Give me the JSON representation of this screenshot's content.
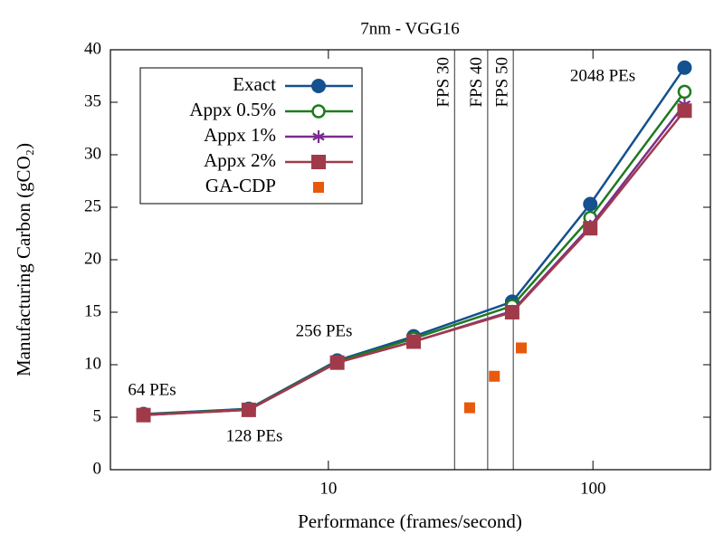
{
  "chart_data": {
    "type": "line",
    "title": "7nm - VGG16",
    "xlabel": "Performance (frames/second)",
    "ylabel": "Manufacturing Carbon (gCO₂)",
    "xscale": "log",
    "xlim": [
      1.5,
      278
    ],
    "ylim": [
      0,
      40
    ],
    "xticks": [
      10,
      100
    ],
    "yticks": [
      0,
      5,
      10,
      15,
      20,
      25,
      30,
      35,
      40
    ],
    "x": [
      2,
      5,
      10.8,
      21,
      49.5,
      97.7,
      222
    ],
    "series": [
      {
        "name": "Exact",
        "color": "#15508f",
        "marker": "circle",
        "values": [
          5.3,
          5.8,
          10.4,
          12.7,
          16.0,
          25.3,
          38.3
        ]
      },
      {
        "name": "Appx 0.5%",
        "color": "#1f7a1f",
        "marker": "open-circle",
        "values": [
          5.25,
          5.75,
          10.3,
          12.5,
          15.6,
          24.0,
          36.0
        ]
      },
      {
        "name": "Appx 1%",
        "color": "#7b2d8e",
        "marker": "asterisk",
        "values": [
          5.2,
          5.7,
          10.2,
          12.2,
          15.1,
          23.2,
          34.8
        ]
      },
      {
        "name": "Appx 2%",
        "color": "#a03a4a",
        "marker": "square",
        "values": [
          5.2,
          5.7,
          10.2,
          12.2,
          15.0,
          23.0,
          34.2
        ]
      },
      {
        "name": "GA-CDP",
        "color": "#e8590c",
        "marker": "small-square",
        "x": [
          34.2,
          42.4,
          53.6
        ],
        "values": [
          5.9,
          8.9,
          11.6
        ]
      }
    ],
    "vlines": [
      {
        "value": 30,
        "label": "FPS 30"
      },
      {
        "value": 40,
        "label": "FPS 40"
      },
      {
        "value": 50,
        "label": "FPS 50"
      }
    ],
    "annotations": [
      "64 PEs",
      "128 PEs",
      "256 PEs",
      "2048 PEs"
    ],
    "legend": "upper left"
  }
}
